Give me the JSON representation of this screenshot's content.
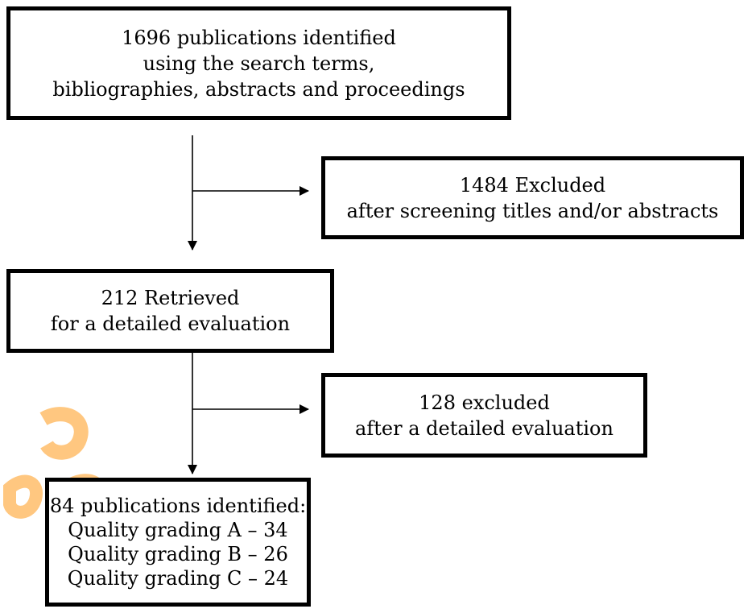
{
  "flowchart": {
    "identified": {
      "lines": [
        "1696 publications identified",
        "using the search terms,",
        "bibliographies, abstracts and proceedings"
      ]
    },
    "excluded_screening": {
      "lines": [
        "1484 Excluded",
        "after screening titles and/or abstracts"
      ]
    },
    "retrieved": {
      "lines": [
        "212 Retrieved",
        "for a detailed evaluation"
      ]
    },
    "excluded_evaluation": {
      "lines": [
        "128 excluded",
        "after a detailed evaluation"
      ]
    },
    "final": {
      "lines": [
        "84 publications identified:",
        "Quality grading A – 34",
        "Quality grading B – 26",
        "Quality grading C – 24"
      ]
    }
  },
  "colors": {
    "stroke": "#000000",
    "background": "#ffffff",
    "watermark": "#ff9a1a"
  }
}
